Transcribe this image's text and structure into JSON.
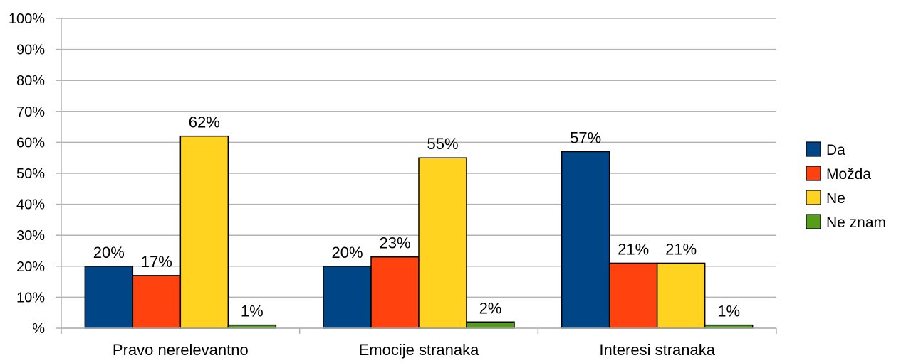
{
  "chart_data": {
    "type": "bar",
    "categories": [
      "Pravo nerelevantno",
      "Emocije stranaka",
      "Interesi stranaka"
    ],
    "series": [
      {
        "name": "Da",
        "color": "#004586",
        "values": [
          20,
          20,
          57
        ],
        "labels": [
          "20%",
          "20%",
          "57%"
        ]
      },
      {
        "name": "Možda",
        "color": "#ff420e",
        "values": [
          17,
          23,
          21
        ],
        "labels": [
          "17%",
          "23%",
          "21%"
        ]
      },
      {
        "name": "Ne",
        "color": "#ffd320",
        "values": [
          62,
          55,
          21
        ],
        "labels": [
          "62%",
          "55%",
          "21%"
        ]
      },
      {
        "name": "Ne znam",
        "color": "#579d1c",
        "values": [
          1,
          2,
          1
        ],
        "labels": [
          "1%",
          "2%",
          "1%"
        ]
      }
    ],
    "yticks": [
      "%",
      "10%",
      "20%",
      "30%",
      "40%",
      "50%",
      "60%",
      "70%",
      "80%",
      "90%",
      "100%"
    ],
    "ylim": [
      0,
      100
    ],
    "grid": true,
    "legend": "right"
  }
}
